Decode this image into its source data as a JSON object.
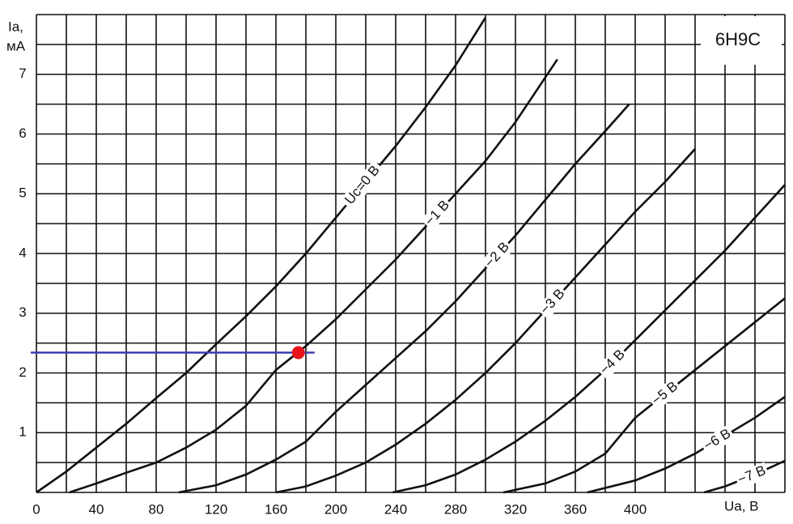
{
  "chart_data": {
    "type": "line",
    "annotation": "6H9C",
    "y_label": "Ia,",
    "y_unit": "мА",
    "x_label": "Ua, B",
    "xlim": [
      0,
      500
    ],
    "ylim": [
      0,
      8
    ],
    "xticks": [
      0,
      40,
      80,
      120,
      160,
      200,
      240,
      280,
      320,
      360,
      400
    ],
    "yticks": [
      1,
      2,
      3,
      4,
      5,
      6,
      7
    ],
    "xgrid": [
      0,
      20,
      40,
      60,
      80,
      100,
      120,
      140,
      160,
      180,
      200,
      220,
      240,
      260,
      280,
      300,
      320,
      340,
      360,
      380,
      400,
      420,
      440,
      460,
      480,
      500
    ],
    "ygrid": [
      0,
      0.5,
      1,
      1.5,
      2,
      2.5,
      3,
      3.5,
      4,
      4.5,
      5,
      5.5,
      6,
      6.5,
      7,
      7.5,
      8
    ],
    "grid": true,
    "color": "#111111",
    "series": [
      {
        "name": "Uc=0 B",
        "x": [
          0,
          20,
          40,
          60,
          80,
          100,
          120,
          140,
          160,
          180,
          200,
          220,
          240,
          260,
          280,
          300
        ],
        "values": [
          0,
          0.35,
          0.75,
          1.15,
          1.58,
          2.0,
          2.48,
          2.95,
          3.45,
          4.0,
          4.6,
          5.2,
          5.8,
          6.45,
          7.15,
          7.95
        ]
      },
      {
        "name": "−1 B",
        "x": [
          22,
          40,
          60,
          80,
          100,
          120,
          140,
          160,
          180,
          200,
          220,
          240,
          260,
          280,
          300,
          320,
          340,
          348
        ],
        "values": [
          0,
          0.15,
          0.33,
          0.5,
          0.75,
          1.05,
          1.45,
          2.05,
          2.45,
          2.9,
          3.4,
          3.9,
          4.45,
          5.0,
          5.55,
          6.2,
          6.95,
          7.25
        ]
      },
      {
        "name": "−2 B",
        "x": [
          95,
          120,
          140,
          160,
          180,
          200,
          220,
          240,
          260,
          280,
          300,
          320,
          340,
          360,
          380,
          396
        ],
        "values": [
          0,
          0.12,
          0.3,
          0.55,
          0.85,
          1.35,
          1.8,
          2.25,
          2.7,
          3.2,
          3.75,
          4.3,
          4.9,
          5.5,
          6.05,
          6.5
        ]
      },
      {
        "name": "−3 B",
        "x": [
          160,
          180,
          200,
          220,
          240,
          260,
          280,
          300,
          320,
          340,
          360,
          380,
          400,
          420,
          440
        ],
        "values": [
          0,
          0.1,
          0.28,
          0.5,
          0.8,
          1.15,
          1.55,
          2.0,
          2.5,
          3.05,
          3.6,
          4.15,
          4.7,
          5.2,
          5.75
        ]
      },
      {
        "name": "−4 B",
        "x": [
          238,
          260,
          280,
          300,
          320,
          340,
          360,
          380,
          400,
          420,
          440,
          460,
          480,
          500
        ],
        "values": [
          0,
          0.12,
          0.3,
          0.55,
          0.85,
          1.2,
          1.6,
          2.05,
          2.55,
          3.05,
          3.55,
          4.05,
          4.6,
          5.15
        ]
      },
      {
        "name": "−5 B",
        "x": [
          312,
          340,
          360,
          380,
          400,
          420,
          440,
          460,
          480,
          500
        ],
        "values": [
          0,
          0.15,
          0.35,
          0.65,
          1.25,
          1.65,
          2.05,
          2.45,
          2.85,
          3.25
        ]
      },
      {
        "name": "−6 B",
        "x": [
          368,
          400,
          420,
          440,
          460,
          480,
          500
        ],
        "values": [
          0,
          0.2,
          0.4,
          0.65,
          0.95,
          1.25,
          1.6
        ]
      },
      {
        "name": "−7 B",
        "x": [
          446,
          460,
          480,
          500
        ],
        "values": [
          0,
          0.1,
          0.3,
          0.53
        ]
      }
    ],
    "marker": {
      "x": 175,
      "y": 2.34,
      "color": "#e8141b"
    },
    "reference_line": {
      "y": 2.34,
      "color": "#3a3fb0"
    }
  }
}
